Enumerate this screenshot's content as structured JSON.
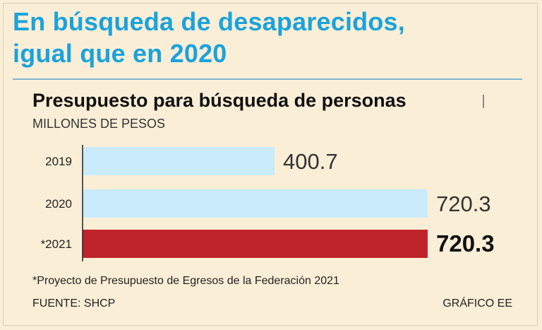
{
  "headline": {
    "line1": "En búsqueda de desaparecidos,",
    "line2": "igual que en 2020"
  },
  "colors": {
    "accent": "#1aa3dd",
    "bar_light": "#c9ebfb",
    "bar_highlight": "#c0242b",
    "background": "#fbeed6"
  },
  "chart_data": {
    "type": "bar",
    "orientation": "horizontal",
    "title": "Presupuesto para búsqueda de personas",
    "units": "MILLONES DE PESOS",
    "categories": [
      "2019",
      "2020",
      "*2021"
    ],
    "values": [
      400.7,
      720.3,
      720.3
    ],
    "value_labels": [
      "400.7",
      "720.3",
      "720.3"
    ],
    "highlight_index": 2,
    "xlim": [
      0,
      720.3
    ]
  },
  "footnote": "*Proyecto de Presupuesto de Egresos de la Federación 2021",
  "source": "FUENTE: SHCP",
  "credit": "GRÁFICO EE"
}
